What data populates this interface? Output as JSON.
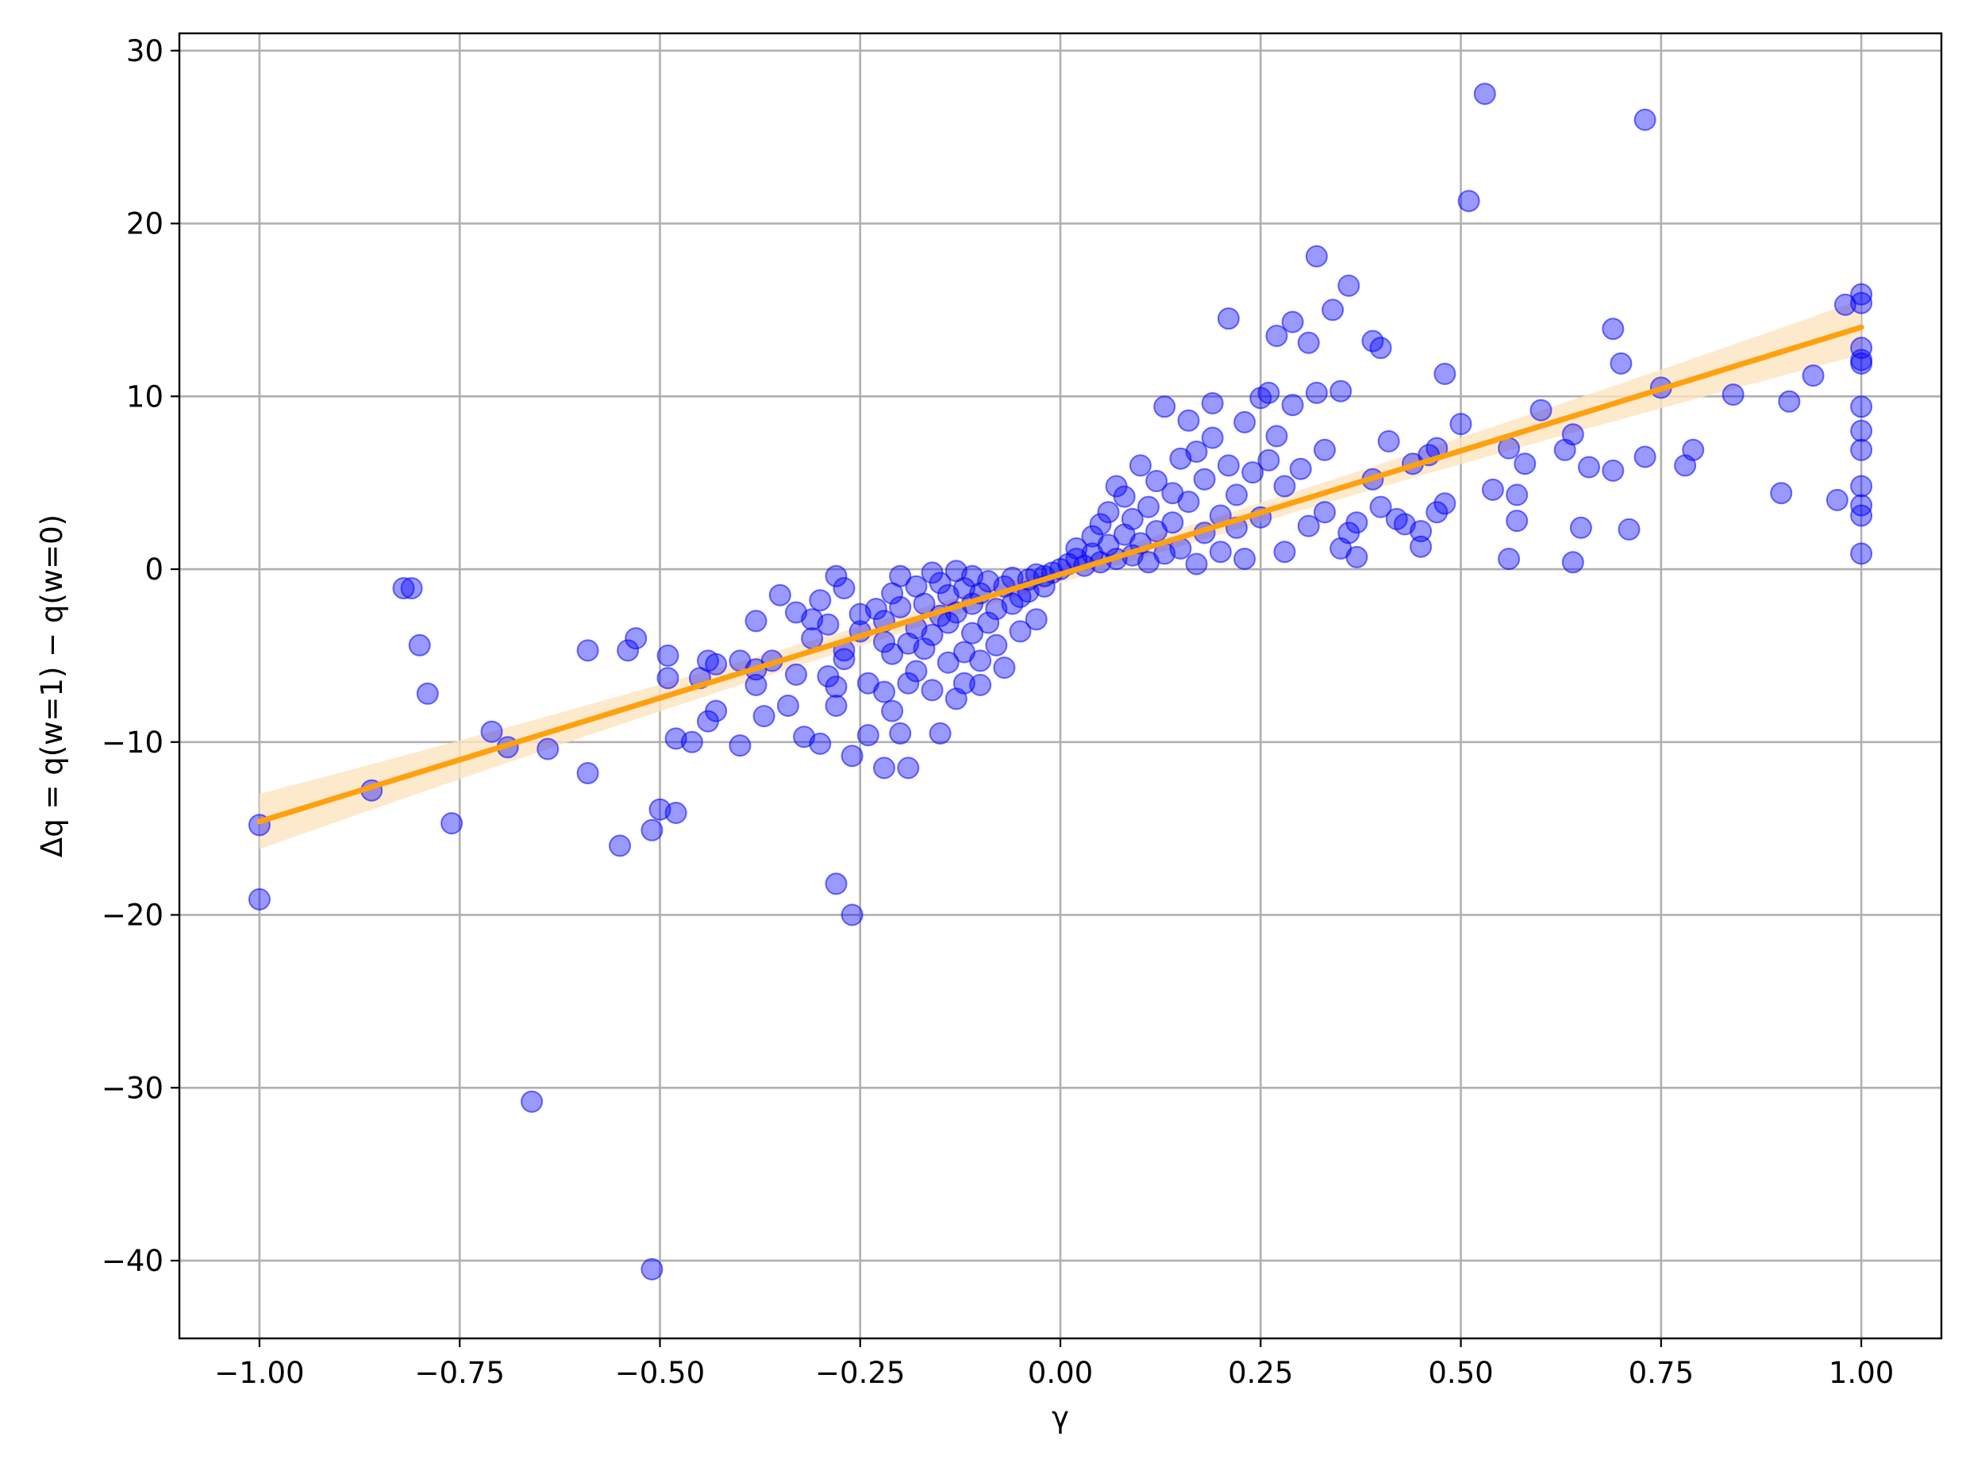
{
  "chart_data": {
    "type": "scatter",
    "title": "",
    "xlabel": "γ",
    "ylabel": "Δq = q(w=1) − q(w=0)",
    "xlim": [
      -1.1,
      1.1
    ],
    "ylim": [
      -44.5,
      31
    ],
    "x_ticks": [
      -1.0,
      -0.75,
      -0.5,
      -0.25,
      0.0,
      0.25,
      0.5,
      0.75,
      1.0
    ],
    "x_tick_labels": [
      "−1.00",
      "−0.75",
      "−0.50",
      "−0.25",
      "0.00",
      "0.25",
      "0.50",
      "0.75",
      "1.00"
    ],
    "y_ticks": [
      -40,
      -30,
      -20,
      -10,
      0,
      10,
      20,
      30
    ],
    "y_tick_labels": [
      "−40",
      "−30",
      "−20",
      "−10",
      "0",
      "10",
      "20",
      "30"
    ],
    "grid": true,
    "legend": "none",
    "colors": {
      "points": "#0000ff",
      "fit_line": "#ffa010",
      "confidence_band": "#fde5bf"
    },
    "regression": {
      "x": [
        -1.0,
        1.0
      ],
      "y": [
        -14.6,
        14.0
      ],
      "band_half_width_at_ends": 1.6,
      "band_half_width_at_center": 0.5
    },
    "points": [
      [
        -1.0,
        -14.8
      ],
      [
        -1.0,
        -19.1
      ],
      [
        -0.86,
        -12.8
      ],
      [
        -0.82,
        -1.1
      ],
      [
        -0.81,
        -1.1
      ],
      [
        -0.8,
        -4.4
      ],
      [
        -0.79,
        -7.2
      ],
      [
        -0.76,
        -14.7
      ],
      [
        -0.71,
        -9.4
      ],
      [
        -0.69,
        -10.3
      ],
      [
        -0.66,
        -30.8
      ],
      [
        -0.64,
        -10.4
      ],
      [
        -0.59,
        -11.8
      ],
      [
        -0.59,
        -4.7
      ],
      [
        -0.55,
        -16.0
      ],
      [
        -0.54,
        -4.7
      ],
      [
        -0.53,
        -4.0
      ],
      [
        -0.51,
        -15.1
      ],
      [
        -0.51,
        -40.5
      ],
      [
        -0.5,
        -13.9
      ],
      [
        -0.49,
        -5.0
      ],
      [
        -0.49,
        -6.3
      ],
      [
        -0.48,
        -14.1
      ],
      [
        -0.48,
        -9.8
      ],
      [
        -0.46,
        -10.0
      ],
      [
        -0.45,
        -6.3
      ],
      [
        -0.44,
        -8.8
      ],
      [
        -0.44,
        -5.3
      ],
      [
        -0.43,
        -5.5
      ],
      [
        -0.43,
        -8.2
      ],
      [
        -0.4,
        -10.2
      ],
      [
        -0.4,
        -5.3
      ],
      [
        -0.38,
        -3.0
      ],
      [
        -0.38,
        -5.8
      ],
      [
        -0.38,
        -6.7
      ],
      [
        -0.37,
        -8.5
      ],
      [
        -0.36,
        -5.3
      ],
      [
        -0.35,
        -1.5
      ],
      [
        -0.34,
        -7.9
      ],
      [
        -0.33,
        -2.5
      ],
      [
        -0.33,
        -6.1
      ],
      [
        -0.32,
        -9.7
      ],
      [
        -0.31,
        -2.9
      ],
      [
        -0.31,
        -4.0
      ],
      [
        -0.3,
        -10.1
      ],
      [
        -0.3,
        -1.8
      ],
      [
        -0.29,
        -6.2
      ],
      [
        -0.29,
        -3.2
      ],
      [
        -0.28,
        -6.8
      ],
      [
        -0.28,
        -7.9
      ],
      [
        -0.28,
        -0.4
      ],
      [
        -0.28,
        -18.2
      ],
      [
        -0.27,
        -4.7
      ],
      [
        -0.27,
        -1.1
      ],
      [
        -0.27,
        -5.2
      ],
      [
        -0.26,
        -10.8
      ],
      [
        -0.26,
        -20.0
      ],
      [
        -0.25,
        -2.6
      ],
      [
        -0.25,
        -3.6
      ],
      [
        -0.24,
        -9.6
      ],
      [
        -0.24,
        -6.6
      ],
      [
        -0.23,
        -2.3
      ],
      [
        -0.22,
        -4.2
      ],
      [
        -0.22,
        -11.5
      ],
      [
        -0.22,
        -7.1
      ],
      [
        -0.22,
        -3.0
      ],
      [
        -0.21,
        -8.2
      ],
      [
        -0.21,
        -1.4
      ],
      [
        -0.21,
        -4.9
      ],
      [
        -0.2,
        -9.5
      ],
      [
        -0.2,
        -0.4
      ],
      [
        -0.2,
        -2.2
      ],
      [
        -0.19,
        -6.6
      ],
      [
        -0.19,
        -11.5
      ],
      [
        -0.19,
        -4.3
      ],
      [
        -0.18,
        -1.0
      ],
      [
        -0.18,
        -3.4
      ],
      [
        -0.18,
        -5.9
      ],
      [
        -0.17,
        -4.6
      ],
      [
        -0.17,
        -2.0
      ],
      [
        -0.16,
        -0.2
      ],
      [
        -0.16,
        -7.0
      ],
      [
        -0.16,
        -3.8
      ],
      [
        -0.15,
        -2.7
      ],
      [
        -0.15,
        -9.5
      ],
      [
        -0.15,
        -0.8
      ],
      [
        -0.14,
        -5.4
      ],
      [
        -0.14,
        -1.5
      ],
      [
        -0.14,
        -3.1
      ],
      [
        -0.13,
        -7.5
      ],
      [
        -0.13,
        -0.1
      ],
      [
        -0.13,
        -2.5
      ],
      [
        -0.12,
        -4.8
      ],
      [
        -0.12,
        -6.6
      ],
      [
        -0.12,
        -1.1
      ],
      [
        -0.11,
        -3.7
      ],
      [
        -0.11,
        -0.4
      ],
      [
        -0.11,
        -2.0
      ],
      [
        -0.1,
        -6.7
      ],
      [
        -0.1,
        -5.3
      ],
      [
        -0.1,
        -1.4
      ],
      [
        -0.09,
        -3.1
      ],
      [
        -0.09,
        -0.7
      ],
      [
        -0.08,
        -2.3
      ],
      [
        -0.08,
        -4.4
      ],
      [
        -0.07,
        -1.0
      ],
      [
        -0.07,
        -5.7
      ],
      [
        -0.06,
        -2.0
      ],
      [
        -0.06,
        -0.5
      ],
      [
        -0.05,
        -1.6
      ],
      [
        -0.05,
        -3.6
      ],
      [
        -0.04,
        -0.6
      ],
      [
        -0.04,
        -1.3
      ],
      [
        -0.03,
        -2.9
      ],
      [
        -0.03,
        -0.3
      ],
      [
        -0.02,
        -1.0
      ],
      [
        -0.02,
        -0.4
      ],
      [
        -0.01,
        -0.2
      ],
      [
        0.0,
        0.0
      ],
      [
        0.01,
        0.3
      ],
      [
        0.02,
        0.6
      ],
      [
        0.02,
        1.2
      ],
      [
        0.03,
        0.2
      ],
      [
        0.04,
        1.9
      ],
      [
        0.04,
        0.9
      ],
      [
        0.05,
        2.6
      ],
      [
        0.05,
        0.4
      ],
      [
        0.06,
        1.4
      ],
      [
        0.06,
        3.3
      ],
      [
        0.07,
        4.8
      ],
      [
        0.07,
        0.6
      ],
      [
        0.08,
        2.0
      ],
      [
        0.08,
        4.2
      ],
      [
        0.09,
        0.8
      ],
      [
        0.09,
        2.9
      ],
      [
        0.1,
        6.0
      ],
      [
        0.1,
        1.5
      ],
      [
        0.11,
        3.6
      ],
      [
        0.11,
        0.4
      ],
      [
        0.12,
        5.1
      ],
      [
        0.12,
        2.2
      ],
      [
        0.13,
        9.4
      ],
      [
        0.13,
        0.9
      ],
      [
        0.14,
        4.4
      ],
      [
        0.14,
        2.7
      ],
      [
        0.15,
        6.4
      ],
      [
        0.15,
        1.2
      ],
      [
        0.16,
        8.6
      ],
      [
        0.16,
        3.9
      ],
      [
        0.17,
        6.8
      ],
      [
        0.17,
        0.3
      ],
      [
        0.18,
        2.1
      ],
      [
        0.18,
        5.2
      ],
      [
        0.19,
        7.6
      ],
      [
        0.19,
        9.6
      ],
      [
        0.2,
        3.1
      ],
      [
        0.2,
        1.0
      ],
      [
        0.21,
        14.5
      ],
      [
        0.21,
        6.0
      ],
      [
        0.22,
        4.3
      ],
      [
        0.22,
        2.4
      ],
      [
        0.23,
        8.5
      ],
      [
        0.23,
        0.6
      ],
      [
        0.24,
        5.6
      ],
      [
        0.25,
        9.9
      ],
      [
        0.25,
        3.0
      ],
      [
        0.26,
        10.2
      ],
      [
        0.26,
        6.3
      ],
      [
        0.27,
        13.5
      ],
      [
        0.27,
        7.7
      ],
      [
        0.28,
        4.8
      ],
      [
        0.28,
        1.0
      ],
      [
        0.29,
        14.3
      ],
      [
        0.29,
        9.5
      ],
      [
        0.3,
        5.8
      ],
      [
        0.31,
        13.1
      ],
      [
        0.31,
        2.5
      ],
      [
        0.32,
        18.1
      ],
      [
        0.32,
        10.2
      ],
      [
        0.33,
        6.9
      ],
      [
        0.33,
        3.3
      ],
      [
        0.34,
        15.0
      ],
      [
        0.35,
        10.3
      ],
      [
        0.35,
        1.2
      ],
      [
        0.36,
        16.4
      ],
      [
        0.36,
        2.1
      ],
      [
        0.37,
        0.7
      ],
      [
        0.37,
        2.7
      ],
      [
        0.39,
        13.2
      ],
      [
        0.39,
        5.2
      ],
      [
        0.4,
        12.8
      ],
      [
        0.4,
        3.6
      ],
      [
        0.41,
        7.4
      ],
      [
        0.42,
        2.9
      ],
      [
        0.43,
        2.6
      ],
      [
        0.44,
        6.1
      ],
      [
        0.45,
        1.3
      ],
      [
        0.45,
        2.2
      ],
      [
        0.46,
        6.6
      ],
      [
        0.47,
        7.0
      ],
      [
        0.47,
        3.3
      ],
      [
        0.48,
        11.3
      ],
      [
        0.48,
        3.8
      ],
      [
        0.5,
        8.4
      ],
      [
        0.51,
        21.3
      ],
      [
        0.53,
        27.5
      ],
      [
        0.54,
        4.6
      ],
      [
        0.56,
        7.0
      ],
      [
        0.56,
        0.6
      ],
      [
        0.57,
        4.3
      ],
      [
        0.57,
        2.8
      ],
      [
        0.58,
        6.1
      ],
      [
        0.6,
        9.2
      ],
      [
        0.63,
        6.9
      ],
      [
        0.64,
        7.8
      ],
      [
        0.64,
        0.4
      ],
      [
        0.65,
        2.4
      ],
      [
        0.66,
        5.9
      ],
      [
        0.69,
        13.9
      ],
      [
        0.69,
        5.7
      ],
      [
        0.7,
        11.9
      ],
      [
        0.71,
        2.3
      ],
      [
        0.73,
        26.0
      ],
      [
        0.73,
        6.5
      ],
      [
        0.75,
        10.5
      ],
      [
        0.78,
        6.0
      ],
      [
        0.79,
        6.9
      ],
      [
        0.84,
        10.1
      ],
      [
        0.9,
        4.4
      ],
      [
        0.91,
        9.7
      ],
      [
        0.94,
        11.2
      ],
      [
        0.97,
        4.0
      ],
      [
        0.98,
        15.3
      ],
      [
        1.0,
        15.9
      ],
      [
        1.0,
        15.4
      ],
      [
        1.0,
        12.8
      ],
      [
        1.0,
        12.1
      ],
      [
        1.0,
        11.9
      ],
      [
        1.0,
        9.4
      ],
      [
        1.0,
        8.0
      ],
      [
        1.0,
        6.9
      ],
      [
        1.0,
        4.8
      ],
      [
        1.0,
        3.7
      ],
      [
        1.0,
        3.1
      ],
      [
        1.0,
        0.9
      ]
    ]
  }
}
